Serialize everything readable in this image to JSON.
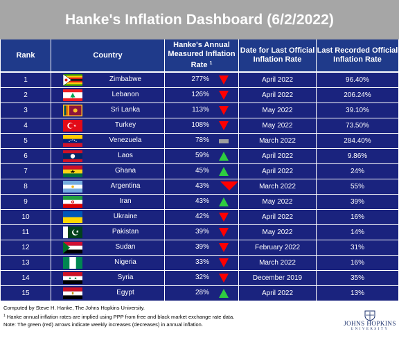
{
  "title": "Hanke's Inflation Dashboard (6/2/2022)",
  "headers": {
    "rank": "Rank",
    "country": "Country",
    "rate_line1": "Hanke's Annual",
    "rate_line2": "Measured Inflation",
    "rate_line3": "Rate",
    "rate_sup": "1",
    "date_line1": "Date for Last Official",
    "date_line2": "Inflation Rate",
    "last_line1": "Last Recorded Official",
    "last_line2": "Inflation Rate"
  },
  "colors": {
    "header_bg": "#1f3a8a",
    "row_bg": "#1a237e",
    "title_bg": "#a6a6a6",
    "increase": "#2ecc40",
    "decrease": "#ff0000",
    "unchanged": "#9e9e9e"
  },
  "chart_data": {
    "type": "table",
    "title": "Hanke's Inflation Dashboard (6/2/2022)",
    "columns": [
      "Rank",
      "Country",
      "Hanke's Annual Measured Inflation Rate",
      "Date for Last Official Inflation Rate",
      "Last Recorded Official Inflation Rate"
    ],
    "rows": [
      {
        "rank": "1",
        "country": "Zimbabwe",
        "flag": "zimbabwe",
        "hanke_rate": "277%",
        "trend": "down",
        "date": "April 2022",
        "official": "96.40%"
      },
      {
        "rank": "2",
        "country": "Lebanon",
        "flag": "lebanon",
        "hanke_rate": "126%",
        "trend": "down",
        "date": "April 2022",
        "official": "206.24%"
      },
      {
        "rank": "3",
        "country": "Sri Lanka",
        "flag": "srilanka",
        "hanke_rate": "113%",
        "trend": "down",
        "date": "May 2022",
        "official": "39.10%"
      },
      {
        "rank": "4",
        "country": "Turkey",
        "flag": "turkey",
        "hanke_rate": "108%",
        "trend": "down",
        "date": "May 2022",
        "official": "73.50%"
      },
      {
        "rank": "5",
        "country": "Venezuela",
        "flag": "venezuela",
        "hanke_rate": "78%",
        "trend": "flat",
        "date": "March 2022",
        "official": "284.40%"
      },
      {
        "rank": "6",
        "country": "Laos",
        "flag": "laos",
        "hanke_rate": "59%",
        "trend": "up",
        "date": "April 2022",
        "official": "9.86%"
      },
      {
        "rank": "7",
        "country": "Ghana",
        "flag": "ghana",
        "hanke_rate": "45%",
        "trend": "up",
        "date": "April 2022",
        "official": "24%"
      },
      {
        "rank": "8",
        "country": "Argentina",
        "flag": "argentina",
        "hanke_rate": "43%",
        "trend": "down",
        "date": "March 2022",
        "official": "55%"
      },
      {
        "rank": "9",
        "country": "Iran",
        "flag": "iran",
        "hanke_rate": "43%",
        "trend": "up",
        "date": "May 2022",
        "official": "39%"
      },
      {
        "rank": "10",
        "country": "Ukraine",
        "flag": "ukraine",
        "hanke_rate": "42%",
        "trend": "down",
        "date": "April 2022",
        "official": "16%"
      },
      {
        "rank": "11",
        "country": "Pakistan",
        "flag": "pakistan",
        "hanke_rate": "39%",
        "trend": "down",
        "date": "May 2022",
        "official": "14%"
      },
      {
        "rank": "12",
        "country": "Sudan",
        "flag": "sudan",
        "hanke_rate": "39%",
        "trend": "down",
        "date": "February 2022",
        "official": "31%"
      },
      {
        "rank": "13",
        "country": "Nigeria",
        "flag": "nigeria",
        "hanke_rate": "33%",
        "trend": "down",
        "date": "March 2022",
        "official": "16%"
      },
      {
        "rank": "14",
        "country": "Syria",
        "flag": "syria",
        "hanke_rate": "32%",
        "trend": "down",
        "date": "December 2019",
        "official": "35%"
      },
      {
        "rank": "15",
        "country": "Egypt",
        "flag": "egypt",
        "hanke_rate": "28%",
        "trend": "up",
        "date": "April 2022",
        "official": "13%"
      }
    ]
  },
  "footer": {
    "line1": "Computed by Steve H. Hanke, The Johns Hopkins University.",
    "line2_sup": "1",
    "line2": " Hanke annual inflation rates are implied using PPP from free and black market exchange rate data.",
    "line3": "Note: The green (red) arrows indicate weekly increases (decreases) in annual inflation."
  },
  "logo": {
    "name": "Johns Hopkins",
    "sub": "UNIVERSITY"
  }
}
